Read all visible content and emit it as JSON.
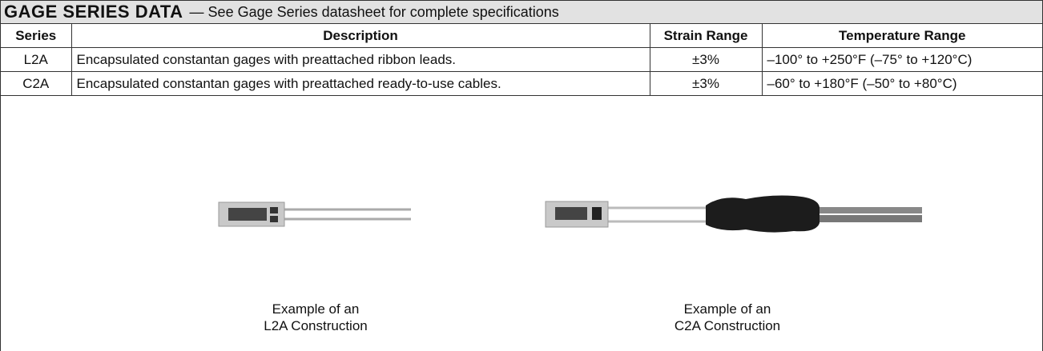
{
  "header": {
    "title": "GAGE SERIES DATA",
    "subtitle": "— See Gage Series datasheet for complete specifications"
  },
  "table": {
    "columns": [
      "Series",
      "Description",
      "Strain Range",
      "Temperature Range"
    ],
    "rows": [
      [
        "L2A",
        "Encapsulated constantan gages with preattached ribbon leads.",
        "±3%",
        "–100° to +250°F (–75° to +120°C)"
      ],
      [
        "C2A",
        "Encapsulated constantan gages with preattached ready-to-use cables.",
        "±3%",
        "–60° to +180°F (–50° to +80°C)"
      ]
    ]
  },
  "figures": [
    {
      "caption": [
        "Example of an",
        "L2A Construction"
      ]
    },
    {
      "caption": [
        "Example of an",
        "C2A Construction"
      ]
    }
  ]
}
